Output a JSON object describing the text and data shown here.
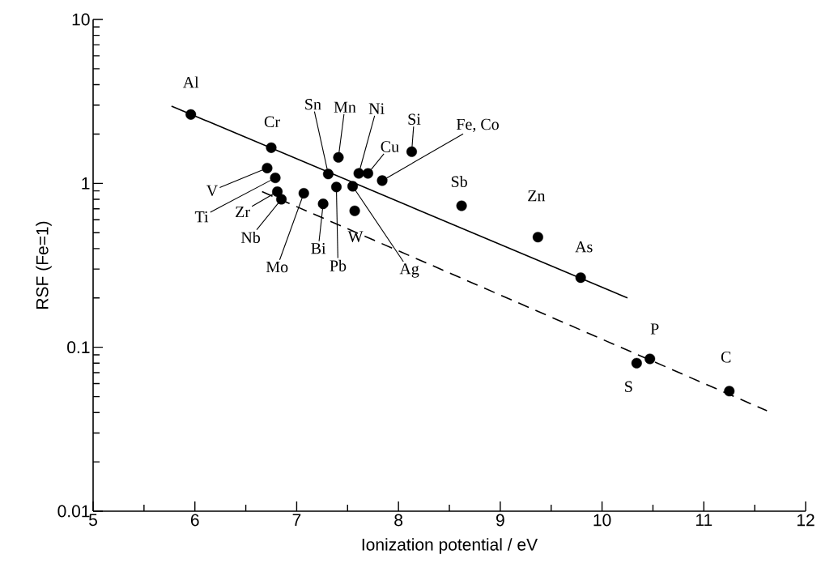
{
  "chart_data": {
    "type": "scatter",
    "xlabel": "Ionization potential / eV",
    "ylabel": "RSF (Fe=1)",
    "log": "y",
    "grid": false,
    "xlim": [
      5,
      12
    ],
    "ylim": [
      0.01,
      10
    ],
    "xticks": [
      5,
      {
        "value": 5.5,
        "label": null
      },
      6,
      {
        "value": 6.5,
        "label": null
      },
      7,
      {
        "value": 7.5,
        "label": null
      },
      8,
      {
        "value": 8.5,
        "label": null
      },
      9,
      {
        "value": 9.5,
        "label": null
      },
      10,
      {
        "value": 10.5,
        "label": null
      },
      11,
      {
        "value": 11.5,
        "label": null
      },
      12
    ],
    "yticks": [
      0.01,
      {
        "value": 0.02,
        "label": null
      },
      {
        "value": 0.03,
        "label": null
      },
      {
        "value": 0.04,
        "label": null
      },
      {
        "value": 0.05,
        "label": null
      },
      {
        "value": 0.06,
        "label": null
      },
      {
        "value": 0.07,
        "label": null
      },
      {
        "value": 0.08,
        "label": null
      },
      {
        "value": 0.09,
        "label": null
      },
      0.1,
      {
        "value": 0.2,
        "label": null
      },
      {
        "value": 0.3,
        "label": null
      },
      {
        "value": 0.4,
        "label": null
      },
      {
        "value": 0.5,
        "label": null
      },
      {
        "value": 0.6,
        "label": null
      },
      {
        "value": 0.7,
        "label": null
      },
      {
        "value": 0.8,
        "label": null
      },
      {
        "value": 0.9,
        "label": null
      },
      1,
      {
        "value": 2,
        "label": null
      },
      {
        "value": 3,
        "label": null
      },
      {
        "value": 4,
        "label": null
      },
      {
        "value": 5,
        "label": null
      },
      {
        "value": 6,
        "label": null
      },
      {
        "value": 7,
        "label": null
      },
      {
        "value": 8,
        "label": null
      },
      {
        "value": 9,
        "label": null
      },
      10
    ],
    "series": [
      {
        "type": "scatter",
        "color": "#000000",
        "marker": "circle",
        "x": [
          5.96,
          6.75,
          7.31,
          7.41,
          7.61,
          7.7,
          8.13,
          7.84,
          6.71,
          6.79,
          6.81,
          6.85,
          7.07,
          7.26,
          7.39,
          7.57,
          7.55,
          8.62,
          9.37,
          9.79,
          10.34,
          10.47,
          11.25
        ],
        "values": [
          2.63,
          1.65,
          1.14,
          1.44,
          1.15,
          1.15,
          1.56,
          1.04,
          1.24,
          1.08,
          0.89,
          0.8,
          0.87,
          0.75,
          0.95,
          0.68,
          0.96,
          0.73,
          0.47,
          0.266,
          0.08,
          0.085,
          0.054
        ]
      },
      {
        "type": "line",
        "color": "#000000",
        "line_style": "solid",
        "x": [
          5.77,
          10.25
        ],
        "values": [
          2.96,
          0.2
        ]
      },
      {
        "type": "line",
        "color": "#000000",
        "line_style": "dashed",
        "x": [
          6.66,
          11.62
        ],
        "values": [
          0.89,
          0.041
        ]
      }
    ],
    "annotations": [
      {
        "text": "Al",
        "x": 5.96,
        "y": 2.63
      },
      {
        "text": "Cr",
        "x": 6.75,
        "y": 1.65
      },
      {
        "text": "Sn",
        "x": 7.31,
        "y": 1.14
      },
      {
        "text": "Mn",
        "x": 7.41,
        "y": 1.44
      },
      {
        "text": "Ni",
        "x": 7.61,
        "y": 1.15
      },
      {
        "text": "Cu",
        "x": 7.7,
        "y": 1.15
      },
      {
        "text": "Si",
        "x": 8.13,
        "y": 1.56
      },
      {
        "text": "Fe, Co",
        "x": 7.84,
        "y": 1.04
      },
      {
        "text": "V",
        "x": 6.71,
        "y": 1.24
      },
      {
        "text": "Ti",
        "x": 6.79,
        "y": 1.08
      },
      {
        "text": "Zr",
        "x": 6.81,
        "y": 0.89
      },
      {
        "text": "Nb",
        "x": 6.85,
        "y": 0.8
      },
      {
        "text": "Mo",
        "x": 7.07,
        "y": 0.87
      },
      {
        "text": "Bi",
        "x": 7.26,
        "y": 0.75
      },
      {
        "text": "Pb",
        "x": 7.39,
        "y": 0.95
      },
      {
        "text": "W",
        "x": 7.57,
        "y": 0.68
      },
      {
        "text": "Ag",
        "x": 7.55,
        "y": 0.96
      },
      {
        "text": "Sb",
        "x": 8.62,
        "y": 0.73
      },
      {
        "text": "Zn",
        "x": 9.37,
        "y": 0.47
      },
      {
        "text": "As",
        "x": 9.79,
        "y": 0.266
      },
      {
        "text": "S",
        "x": 10.34,
        "y": 0.08
      },
      {
        "text": "P",
        "x": 10.47,
        "y": 0.085
      },
      {
        "text": "C",
        "x": 11.25,
        "y": 0.054
      }
    ]
  }
}
